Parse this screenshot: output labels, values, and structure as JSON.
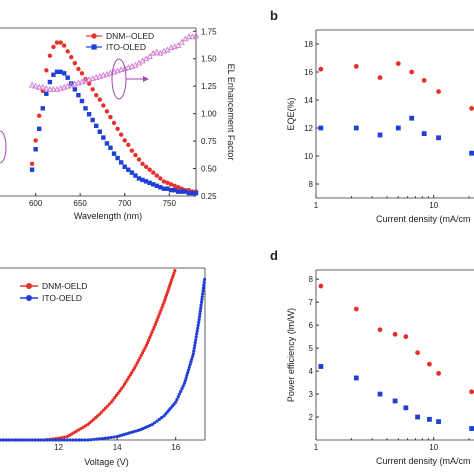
{
  "chart_data": [
    {
      "type": "line",
      "panel_label": "",
      "xlabel": "Wavelength (nm)",
      "ylabel": "",
      "y2label": "EL Enhancement Factor",
      "xlim": [
        560,
        780
      ],
      "ylim": [
        0,
        1.15
      ],
      "y2lim": [
        0.25,
        1.78
      ],
      "xticks": [
        "600",
        "650",
        "700",
        "750"
      ],
      "xtick_values": [
        600,
        650,
        700,
        750
      ],
      "y2ticks": [
        "0.25",
        "0.50",
        "0.75",
        "1.00",
        "1.25",
        "1.50",
        "1.75"
      ],
      "y2tick_values": [
        0.25,
        0.5,
        0.75,
        1.0,
        1.25,
        1.5,
        1.75
      ],
      "legend": [
        "DNM--OLED",
        "ITO-OLED"
      ],
      "legend_position": "top-right",
      "series": [
        {
          "name": "DNM--OLED",
          "color": "#e8302a",
          "marker": "circle",
          "axis": "left",
          "x": [
            596,
            600,
            604,
            608,
            612,
            616,
            620,
            624,
            628,
            632,
            636,
            640,
            644,
            648,
            652,
            656,
            660,
            664,
            668,
            672,
            676,
            680,
            684,
            688,
            692,
            696,
            700,
            704,
            708,
            712,
            716,
            720,
            724,
            728,
            732,
            736,
            740,
            744,
            748,
            752,
            756,
            760,
            764,
            768,
            772,
            776,
            780
          ],
          "values": [
            0.22,
            0.38,
            0.55,
            0.72,
            0.86,
            0.96,
            1.02,
            1.05,
            1.05,
            1.03,
            0.99,
            0.95,
            0.91,
            0.87,
            0.84,
            0.8,
            0.77,
            0.73,
            0.69,
            0.66,
            0.62,
            0.58,
            0.54,
            0.5,
            0.46,
            0.42,
            0.38,
            0.35,
            0.31,
            0.28,
            0.25,
            0.22,
            0.2,
            0.18,
            0.16,
            0.14,
            0.12,
            0.1,
            0.09,
            0.08,
            0.07,
            0.06,
            0.05,
            0.04,
            0.04,
            0.03,
            0.03
          ]
        },
        {
          "name": "ITO-OLED",
          "color": "#1f3fd6",
          "marker": "square",
          "axis": "left",
          "x": [
            596,
            600,
            604,
            608,
            612,
            616,
            620,
            624,
            628,
            632,
            636,
            640,
            644,
            648,
            652,
            656,
            660,
            664,
            668,
            672,
            676,
            680,
            684,
            688,
            692,
            696,
            700,
            704,
            708,
            712,
            716,
            720,
            724,
            728,
            732,
            736,
            740,
            744,
            748,
            752,
            756,
            760,
            764,
            768,
            772,
            776,
            780
          ],
          "values": [
            0.18,
            0.32,
            0.46,
            0.6,
            0.7,
            0.78,
            0.83,
            0.85,
            0.85,
            0.84,
            0.81,
            0.77,
            0.73,
            0.69,
            0.65,
            0.6,
            0.56,
            0.52,
            0.48,
            0.44,
            0.4,
            0.36,
            0.33,
            0.29,
            0.26,
            0.23,
            0.2,
            0.18,
            0.16,
            0.14,
            0.12,
            0.11,
            0.1,
            0.09,
            0.08,
            0.07,
            0.06,
            0.05,
            0.05,
            0.04,
            0.04,
            0.03,
            0.03,
            0.03,
            0.02,
            0.02,
            0.02
          ]
        },
        {
          "name": "",
          "color": "#d37fd3",
          "marker": "triangle-open",
          "axis": "right",
          "x": [
            596,
            600,
            604,
            608,
            612,
            616,
            620,
            624,
            628,
            632,
            636,
            640,
            644,
            648,
            652,
            656,
            660,
            664,
            668,
            672,
            676,
            680,
            684,
            688,
            692,
            696,
            700,
            704,
            708,
            712,
            716,
            720,
            724,
            728,
            732,
            736,
            740,
            744,
            748,
            752,
            756,
            760,
            764,
            768,
            772,
            776,
            780
          ],
          "values": [
            1.26,
            1.25,
            1.24,
            1.24,
            1.23,
            1.22,
            1.22,
            1.22,
            1.23,
            1.24,
            1.25,
            1.26,
            1.27,
            1.28,
            1.29,
            1.3,
            1.31,
            1.32,
            1.33,
            1.34,
            1.35,
            1.36,
            1.37,
            1.38,
            1.39,
            1.4,
            1.41,
            1.42,
            1.43,
            1.44,
            1.46,
            1.48,
            1.5,
            1.52,
            1.55,
            1.56,
            1.55,
            1.57,
            1.58,
            1.6,
            1.61,
            1.62,
            1.65,
            1.68,
            1.7,
            1.7,
            1.71
          ]
        }
      ]
    },
    {
      "type": "scatter",
      "panel_label": "b",
      "xlabel": "Current density (mA/cm",
      "ylabel": "EQE(%)",
      "xscale": "log",
      "xlim": [
        1,
        22
      ],
      "ylim": [
        7,
        19
      ],
      "xticks": [
        "1",
        "10"
      ],
      "xtick_values": [
        1,
        10
      ],
      "yticks": [
        "8",
        "10",
        "12",
        "14",
        "16",
        "18"
      ],
      "ytick_values": [
        8,
        10,
        12,
        14,
        16,
        18
      ],
      "series": [
        {
          "name": "",
          "color": "#e8302a",
          "marker": "circle",
          "x": [
            1.1,
            2.2,
            3.5,
            5.0,
            6.5,
            8.3,
            11.0,
            21.0
          ],
          "values": [
            16.2,
            16.4,
            15.6,
            16.6,
            16.0,
            15.4,
            14.6,
            13.4
          ]
        },
        {
          "name": "",
          "color": "#1f3fd6",
          "marker": "square",
          "x": [
            1.1,
            2.2,
            3.5,
            5.0,
            6.5,
            8.3,
            11.0,
            21.0
          ],
          "values": [
            12.0,
            12.0,
            11.5,
            12.0,
            12.7,
            11.6,
            11.3,
            10.2
          ]
        }
      ]
    },
    {
      "type": "line",
      "panel_label": "",
      "xlabel": "Voltage (V)",
      "ylabel": "",
      "xlim": [
        10,
        17
      ],
      "ylim": [
        0,
        1
      ],
      "xticks": [
        "12",
        "14",
        "16"
      ],
      "xtick_values": [
        12,
        14,
        16
      ],
      "legend": [
        "DNM-OELD",
        "ITO-OELD"
      ],
      "legend_position": "top-left",
      "series": [
        {
          "name": "DNM-OELD",
          "color": "#e8302a",
          "marker": "circle",
          "x": [
            10.0,
            10.5,
            11.0,
            11.5,
            12.0,
            12.3,
            12.6,
            13.0,
            13.4,
            13.8,
            14.2,
            14.6,
            15.0,
            15.3,
            15.6,
            15.8,
            16.0
          ],
          "values": [
            0.0,
            0.0,
            0.0,
            0.0,
            0.01,
            0.02,
            0.05,
            0.09,
            0.15,
            0.22,
            0.31,
            0.42,
            0.55,
            0.67,
            0.8,
            0.9,
            1.0
          ]
        },
        {
          "name": "ITO-OELD",
          "color": "#1f3fd6",
          "marker": "circle",
          "x": [
            10.0,
            11.0,
            12.0,
            13.0,
            13.6,
            14.0,
            14.4,
            14.8,
            15.2,
            15.6,
            16.0,
            16.3,
            16.6,
            16.8,
            17.0
          ],
          "values": [
            0.0,
            0.0,
            0.0,
            0.0,
            0.01,
            0.02,
            0.04,
            0.06,
            0.09,
            0.14,
            0.22,
            0.33,
            0.5,
            0.7,
            0.95
          ]
        }
      ]
    },
    {
      "type": "scatter",
      "panel_label": "d",
      "xlabel": "Current density (mA/cm",
      "ylabel": "Power efficiency (lm/W)",
      "xscale": "log",
      "xlim": [
        1,
        22
      ],
      "ylim": [
        1.0,
        8.4
      ],
      "xticks": [
        "1",
        "10"
      ],
      "xtick_values": [
        1,
        10
      ],
      "yticks": [
        "2",
        "3",
        "4",
        "5",
        "6",
        "7",
        "8"
      ],
      "ytick_values": [
        2,
        3,
        4,
        5,
        6,
        7,
        8
      ],
      "series": [
        {
          "name": "",
          "color": "#e8302a",
          "marker": "circle",
          "x": [
            1.1,
            2.2,
            3.5,
            4.7,
            5.8,
            7.3,
            9.2,
            11.0,
            21.0
          ],
          "values": [
            7.7,
            6.7,
            5.8,
            5.6,
            5.5,
            4.8,
            4.3,
            3.9,
            3.1
          ]
        },
        {
          "name": "",
          "color": "#1f3fd6",
          "marker": "square",
          "x": [
            1.1,
            2.2,
            3.5,
            4.7,
            5.8,
            7.3,
            9.2,
            11.0,
            21.0
          ],
          "values": [
            4.2,
            3.7,
            3.0,
            2.7,
            2.4,
            2.0,
            1.9,
            1.8,
            1.5
          ]
        }
      ]
    }
  ]
}
